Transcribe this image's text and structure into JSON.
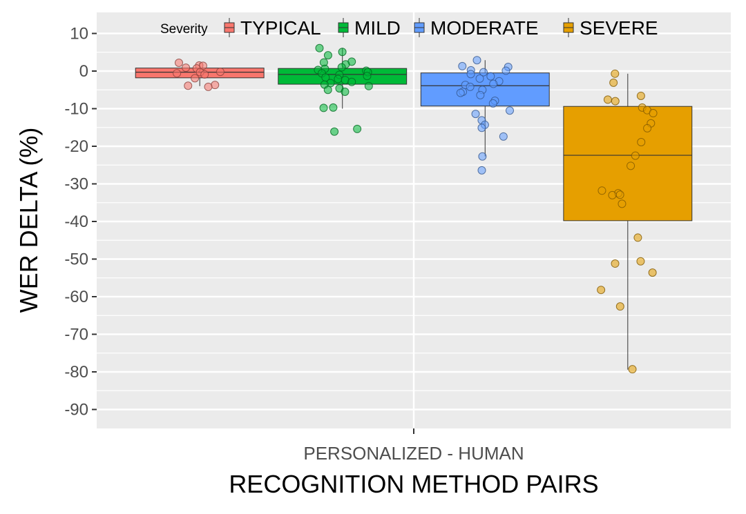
{
  "chart_data": {
    "type": "boxplot",
    "xlabel": "RECOGNITION METHOD PAIRS",
    "ylabel": "WER DELTA (%)",
    "categories": [
      "PERSONALIZED - HUMAN"
    ],
    "ylim": [
      -95,
      14
    ],
    "yticks": [
      10,
      0,
      -10,
      -20,
      -30,
      -40,
      -50,
      -60,
      -70,
      -80,
      -90
    ],
    "ytick_labels": [
      "10",
      "0",
      "-10",
      "-20",
      "-30",
      "-40",
      "-50",
      "-60",
      "-70",
      "-80",
      "-90"
    ],
    "grid": true,
    "legend": {
      "title": "Severity",
      "position": "top-inside"
    },
    "series": [
      {
        "name": "TYPICAL",
        "color": "#F8766D",
        "box": {
          "min": -4.0,
          "q1": -1.8,
          "median": -0.3,
          "q3": 0.8,
          "max": 2.2
        },
        "points": [
          1.5,
          1.4,
          2.2,
          0.9,
          0.7,
          -0.3,
          -0.6,
          -0.2,
          -0.9,
          -1.9,
          -3.9,
          -3.7,
          -4.2
        ]
      },
      {
        "name": "MILD",
        "color": "#00BA38",
        "box": {
          "min": -10.0,
          "q1": -3.5,
          "median": -0.9,
          "q3": 0.7,
          "max": 6.1
        },
        "points": [
          6.1,
          5.1,
          4.2,
          2.5,
          2.3,
          1.8,
          1.0,
          0.6,
          0.3,
          0.1,
          -0.3,
          -0.6,
          -1.0,
          -1.3,
          -1.7,
          -2.1,
          -2.4,
          -2.9,
          -3.2,
          -3.6,
          -4.0,
          -4.6,
          -5.0,
          -5.5,
          -9.7,
          -9.8,
          -15.4,
          -16.1
        ]
      },
      {
        "name": "MODERATE",
        "color": "#619CFF",
        "box": {
          "min": -22.7,
          "q1": -9.3,
          "median": -3.9,
          "q3": -0.5,
          "max": 2.9
        },
        "points": [
          2.9,
          1.3,
          1.1,
          0.2,
          0.1,
          -0.3,
          -0.8,
          -1.4,
          -2.0,
          -2.7,
          -3.4,
          -3.7,
          -4.2,
          -5.0,
          -5.5,
          -5.8,
          -6.4,
          -7.9,
          -8.6,
          -10.5,
          -11.4,
          -13.1,
          -14.3,
          -15.1,
          -17.4,
          -22.7,
          -26.4
        ]
      },
      {
        "name": "SEVERE",
        "color": "#E69F00",
        "box": {
          "min": -79.4,
          "q1": -39.8,
          "median": -22.4,
          "q3": -9.4,
          "max": -0.7
        },
        "points": [
          -0.7,
          -3.1,
          -6.6,
          -7.6,
          -8.0,
          -9.7,
          -10.4,
          -11.2,
          -13.9,
          -15.2,
          -18.9,
          -22.5,
          -25.2,
          -31.8,
          -32.5,
          -32.9,
          -33.0,
          -35.3,
          -44.3,
          -50.6,
          -51.2,
          -53.6,
          -58.2,
          -62.6,
          -79.3
        ]
      }
    ]
  }
}
